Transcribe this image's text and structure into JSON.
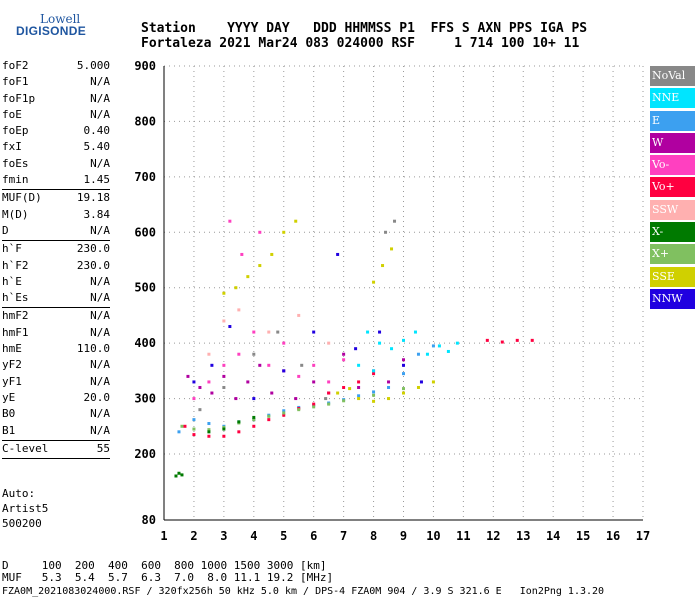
{
  "logo": {
    "line1": "Lowell",
    "line2": "DIGISONDE"
  },
  "header": {
    "row1": "Station    YYYY DAY   DDD HHMMSS P1  FFS S AXN PPS IGA PS",
    "row2": "Fortaleza 2021 Mar24 083 024000 RSF     1 714 100 10+ 11"
  },
  "params": {
    "group1": [
      {
        "label": "foF2",
        "value": "5.000"
      },
      {
        "label": "foF1",
        "value": "N/A"
      },
      {
        "label": "foF1p",
        "value": "N/A"
      },
      {
        "label": "foE",
        "value": "N/A"
      },
      {
        "label": "foEp",
        "value": "0.40"
      },
      {
        "label": "fxI",
        "value": "5.40"
      },
      {
        "label": "foEs",
        "value": "N/A"
      },
      {
        "label": "fmin",
        "value": "1.45"
      }
    ],
    "group2": [
      {
        "label": "MUF(D)",
        "value": "19.18"
      },
      {
        "label": "M(D)",
        "value": "3.84"
      },
      {
        "label": "D",
        "value": "N/A"
      }
    ],
    "group3": [
      {
        "label": "h`F",
        "value": "230.0"
      },
      {
        "label": "h`F2",
        "value": "230.0"
      },
      {
        "label": "h`E",
        "value": "N/A"
      },
      {
        "label": "h`Es",
        "value": "N/A"
      }
    ],
    "group4": [
      {
        "label": "hmF2",
        "value": "N/A"
      },
      {
        "label": "hmF1",
        "value": "N/A"
      },
      {
        "label": "hmE",
        "value": "110.0"
      },
      {
        "label": "yF2",
        "value": "N/A"
      },
      {
        "label": "yF1",
        "value": "N/A"
      },
      {
        "label": "yE",
        "value": "20.0"
      },
      {
        "label": "B0",
        "value": "N/A"
      },
      {
        "label": "B1",
        "value": "N/A"
      }
    ],
    "group5": [
      {
        "label": "C-level",
        "value": "55"
      }
    ]
  },
  "auto": {
    "line1": "Auto:",
    "line2": "Artist5",
    "line3": "500200"
  },
  "legend": [
    {
      "label": "NoVal",
      "color": "#888888"
    },
    {
      "label": "NNE",
      "color": "#00e5ff"
    },
    {
      "label": "E",
      "color": "#3ca0f0"
    },
    {
      "label": "W",
      "color": "#b000a0"
    },
    {
      "label": "Vo-",
      "color": "#ff40c0"
    },
    {
      "label": "Vo+",
      "color": "#ff0040"
    },
    {
      "label": "SSW",
      "color": "#ffb0b0"
    },
    {
      "label": "X-",
      "color": "#007a00"
    },
    {
      "label": "X+",
      "color": "#80c060"
    },
    {
      "label": "SSE",
      "color": "#d0d000"
    },
    {
      "label": "NNW",
      "color": "#2000e0"
    }
  ],
  "bottom": {
    "line1": "D     100  200  400  600  800 1000 1500 3000 [km]",
    "line2": "MUF   5.3  5.4  5.7  6.3  7.0  8.0 11.1 19.2 [MHz]",
    "line3": "FZA0M_2021083024000.RSF / 320fx256h 50 kHz 5.0 km / DPS-4 FZA0M 904 / 3.9 S 321.6 E   Ion2Png 1.3.20"
  },
  "chart_data": {
    "type": "scatter",
    "x_ticks": [
      1,
      2,
      3,
      4,
      5,
      6,
      7,
      8,
      9,
      10,
      11,
      12,
      13,
      14,
      15,
      16,
      17
    ],
    "y_ticks": [
      80,
      200,
      300,
      400,
      500,
      600,
      700,
      800,
      900
    ],
    "xlim": [
      1,
      17
    ],
    "ylim": [
      80,
      900
    ],
    "grid": true,
    "legend_placement": "right",
    "series": [
      {
        "name": "E",
        "color": "#3ca0f0",
        "points": [
          [
            1.5,
            240
          ],
          [
            2,
            262
          ],
          [
            2.5,
            255
          ],
          [
            3,
            250
          ],
          [
            3.5,
            258
          ],
          [
            4,
            262
          ],
          [
            4.5,
            270
          ],
          [
            5,
            278
          ],
          [
            5.5,
            284
          ],
          [
            6,
            288
          ],
          [
            6.5,
            292
          ],
          [
            7,
            298
          ],
          [
            7.5,
            305
          ],
          [
            8,
            312
          ],
          [
            8.5,
            320
          ],
          [
            9,
            345
          ],
          [
            9.5,
            380
          ],
          [
            10,
            395
          ]
        ]
      },
      {
        "name": "W",
        "color": "#b000a0",
        "points": [
          [
            1.8,
            340
          ],
          [
            2.2,
            320
          ],
          [
            2.6,
            310
          ],
          [
            3,
            340
          ],
          [
            3.4,
            300
          ],
          [
            3.8,
            330
          ],
          [
            4.2,
            360
          ],
          [
            4.6,
            310
          ],
          [
            5,
            350
          ],
          [
            5.4,
            300
          ],
          [
            6,
            330
          ],
          [
            6.5,
            310
          ],
          [
            7,
            380
          ],
          [
            7.5,
            320
          ],
          [
            8,
            350
          ],
          [
            8.5,
            330
          ],
          [
            9,
            370
          ]
        ]
      },
      {
        "name": "Vo+",
        "color": "#ff0040",
        "points": [
          [
            1.7,
            250
          ],
          [
            2,
            235
          ],
          [
            2.5,
            232
          ],
          [
            3,
            232
          ],
          [
            3.5,
            240
          ],
          [
            4,
            250
          ],
          [
            4.5,
            262
          ],
          [
            5,
            270
          ],
          [
            5.5,
            282
          ],
          [
            6,
            290
          ],
          [
            6.5,
            310
          ],
          [
            7,
            320
          ],
          [
            7.5,
            330
          ],
          [
            8,
            345
          ],
          [
            11.8,
            405
          ],
          [
            12.3,
            402
          ],
          [
            12.8,
            405
          ],
          [
            13.3,
            405
          ]
        ]
      },
      {
        "name": "Vo-",
        "color": "#ff40c0",
        "points": [
          [
            2,
            300
          ],
          [
            2.5,
            330
          ],
          [
            3,
            360
          ],
          [
            3.5,
            380
          ],
          [
            4,
            420
          ],
          [
            4.5,
            360
          ],
          [
            5,
            400
          ],
          [
            5.5,
            340
          ],
          [
            6,
            360
          ],
          [
            6.5,
            330
          ],
          [
            7,
            370
          ],
          [
            3.2,
            620
          ],
          [
            3.6,
            560
          ],
          [
            4.2,
            600
          ]
        ]
      },
      {
        "name": "NNE",
        "color": "#00e5ff",
        "points": [
          [
            7.8,
            420
          ],
          [
            8.2,
            400
          ],
          [
            8.6,
            390
          ],
          [
            9,
            405
          ],
          [
            9.4,
            420
          ],
          [
            9.8,
            380
          ],
          [
            10.2,
            395
          ],
          [
            10.5,
            385
          ],
          [
            10.8,
            400
          ],
          [
            7.5,
            360
          ],
          [
            8,
            350
          ]
        ]
      },
      {
        "name": "SSE",
        "color": "#d0d000",
        "points": [
          [
            3,
            490
          ],
          [
            3.4,
            500
          ],
          [
            3.8,
            520
          ],
          [
            4.2,
            540
          ],
          [
            4.6,
            560
          ],
          [
            5,
            600
          ],
          [
            5.4,
            620
          ],
          [
            8,
            510
          ],
          [
            8.3,
            540
          ],
          [
            8.6,
            570
          ],
          [
            7.5,
            300
          ],
          [
            8,
            295
          ],
          [
            8.5,
            300
          ],
          [
            9,
            310
          ],
          [
            9.5,
            320
          ],
          [
            10,
            330
          ],
          [
            6.8,
            310
          ],
          [
            7.2,
            318
          ]
        ]
      },
      {
        "name": "NNW",
        "color": "#2000e0",
        "points": [
          [
            2,
            330
          ],
          [
            2.6,
            360
          ],
          [
            3.2,
            430
          ],
          [
            4,
            300
          ],
          [
            5,
            350
          ],
          [
            6,
            420
          ],
          [
            6.8,
            560
          ],
          [
            7.4,
            390
          ],
          [
            8.2,
            420
          ],
          [
            9,
            360
          ],
          [
            9.6,
            330
          ]
        ]
      },
      {
        "name": "X+",
        "color": "#80c060",
        "points": [
          [
            1.6,
            250
          ],
          [
            2,
            245
          ],
          [
            2.5,
            244
          ],
          [
            3,
            248
          ],
          [
            3.5,
            256
          ],
          [
            4,
            262
          ],
          [
            4.5,
            268
          ],
          [
            5,
            274
          ],
          [
            5.5,
            280
          ],
          [
            6,
            285
          ],
          [
            6.5,
            290
          ],
          [
            7,
            296
          ],
          [
            8,
            306
          ],
          [
            9,
            318
          ]
        ]
      },
      {
        "name": "X-",
        "color": "#007a00",
        "points": [
          [
            1.4,
            160
          ],
          [
            1.5,
            165
          ],
          [
            1.6,
            162
          ],
          [
            2.5,
            240
          ],
          [
            3,
            245
          ],
          [
            3.5,
            258
          ],
          [
            4,
            266
          ]
        ]
      },
      {
        "name": "SSW",
        "color": "#ffb0b0",
        "points": [
          [
            2.5,
            380
          ],
          [
            3,
            440
          ],
          [
            3.5,
            460
          ],
          [
            4.5,
            420
          ],
          [
            5.5,
            450
          ],
          [
            6.5,
            400
          ]
        ]
      },
      {
        "name": "NoVal",
        "color": "#888888",
        "points": [
          [
            2.2,
            280
          ],
          [
            3,
            320
          ],
          [
            4,
            380
          ],
          [
            4.8,
            420
          ],
          [
            5.6,
            360
          ],
          [
            6.4,
            300
          ],
          [
            8.4,
            600
          ],
          [
            8.7,
            620
          ]
        ]
      }
    ]
  }
}
